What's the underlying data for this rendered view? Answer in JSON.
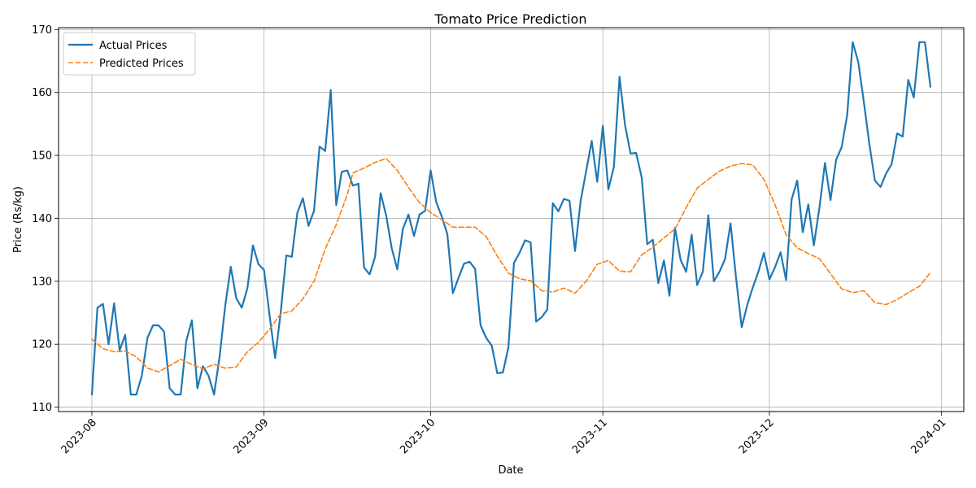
{
  "chart_data": {
    "type": "line",
    "title": "Tomato Price Prediction",
    "xlabel": "Date",
    "ylabel": "Price (Rs/kg)",
    "x_range": [
      "2023-07-26",
      "2024-01-05"
    ],
    "ylim": [
      109.3,
      170.3
    ],
    "x_ticks": [
      "2023-08-01",
      "2023-09-01",
      "2023-10-01",
      "2023-11-01",
      "2023-12-01",
      "2024-01-01"
    ],
    "x_tick_labels": [
      "2023-08",
      "2023-09",
      "2023-10",
      "2023-11",
      "2023-12",
      "2024-01"
    ],
    "y_ticks": [
      110,
      120,
      130,
      140,
      150,
      160,
      170
    ],
    "grid": true,
    "legend_position": "upper left",
    "series": [
      {
        "name": "Actual Prices",
        "color": "#1f77b4",
        "style": "solid",
        "points": [
          [
            "2023-08-01",
            112.0
          ],
          [
            "2023-08-02",
            125.8
          ],
          [
            "2023-08-03",
            126.4
          ],
          [
            "2023-08-04",
            120.0
          ],
          [
            "2023-08-05",
            126.5
          ],
          [
            "2023-08-06",
            119.0
          ],
          [
            "2023-08-07",
            121.5
          ],
          [
            "2023-08-08",
            112.0
          ],
          [
            "2023-08-09",
            112.0
          ],
          [
            "2023-08-10",
            115.0
          ],
          [
            "2023-08-11",
            121.0
          ],
          [
            "2023-08-12",
            123.0
          ],
          [
            "2023-08-13",
            123.0
          ],
          [
            "2023-08-14",
            122.0
          ],
          [
            "2023-08-15",
            113.0
          ],
          [
            "2023-08-16",
            112.0
          ],
          [
            "2023-08-17",
            112.0
          ],
          [
            "2023-08-18",
            120.5
          ],
          [
            "2023-08-19",
            123.8
          ],
          [
            "2023-08-20",
            113.0
          ],
          [
            "2023-08-21",
            116.5
          ],
          [
            "2023-08-22",
            115.0
          ],
          [
            "2023-08-23",
            112.0
          ],
          [
            "2023-08-24",
            118.0
          ],
          [
            "2023-08-25",
            126.0
          ],
          [
            "2023-08-26",
            132.3
          ],
          [
            "2023-08-27",
            127.3
          ],
          [
            "2023-08-28",
            125.8
          ],
          [
            "2023-08-29",
            128.9
          ],
          [
            "2023-08-30",
            135.7
          ],
          [
            "2023-08-31",
            132.7
          ],
          [
            "2023-09-01",
            131.8
          ],
          [
            "2023-09-02",
            124.5
          ],
          [
            "2023-09-03",
            117.8
          ],
          [
            "2023-09-04",
            125.0
          ],
          [
            "2023-09-05",
            134.1
          ],
          [
            "2023-09-06",
            133.9
          ],
          [
            "2023-09-07",
            140.9
          ],
          [
            "2023-09-08",
            143.2
          ],
          [
            "2023-09-09",
            138.8
          ],
          [
            "2023-09-10",
            141.2
          ],
          [
            "2023-09-11",
            151.4
          ],
          [
            "2023-09-12",
            150.7
          ],
          [
            "2023-09-13",
            160.4
          ],
          [
            "2023-09-14",
            142.1
          ],
          [
            "2023-09-15",
            147.4
          ],
          [
            "2023-09-16",
            147.6
          ],
          [
            "2023-09-17",
            145.2
          ],
          [
            "2023-09-18",
            145.5
          ],
          [
            "2023-09-19",
            132.2
          ],
          [
            "2023-09-20",
            131.1
          ],
          [
            "2023-09-21",
            133.9
          ],
          [
            "2023-09-22",
            144.0
          ],
          [
            "2023-09-23",
            140.4
          ],
          [
            "2023-09-24",
            135.2
          ],
          [
            "2023-09-25",
            131.9
          ],
          [
            "2023-09-26",
            138.3
          ],
          [
            "2023-09-27",
            140.6
          ],
          [
            "2023-09-28",
            137.2
          ],
          [
            "2023-09-29",
            140.6
          ],
          [
            "2023-09-30",
            141.2
          ],
          [
            "2023-10-01",
            147.6
          ],
          [
            "2023-10-02",
            142.6
          ],
          [
            "2023-10-03",
            140.3
          ],
          [
            "2023-10-04",
            137.5
          ],
          [
            "2023-10-05",
            128.1
          ],
          [
            "2023-10-06",
            130.5
          ],
          [
            "2023-10-07",
            132.8
          ],
          [
            "2023-10-08",
            133.1
          ],
          [
            "2023-10-09",
            132.0
          ],
          [
            "2023-10-10",
            123.0
          ],
          [
            "2023-10-11",
            121.0
          ],
          [
            "2023-10-12",
            119.8
          ],
          [
            "2023-10-13",
            115.4
          ],
          [
            "2023-10-14",
            115.5
          ],
          [
            "2023-10-15",
            119.5
          ],
          [
            "2023-10-16",
            132.9
          ],
          [
            "2023-10-17",
            134.5
          ],
          [
            "2023-10-18",
            136.5
          ],
          [
            "2023-10-19",
            136.2
          ],
          [
            "2023-10-20",
            123.6
          ],
          [
            "2023-10-21",
            124.3
          ],
          [
            "2023-10-22",
            125.5
          ],
          [
            "2023-10-23",
            142.4
          ],
          [
            "2023-10-24",
            141.1
          ],
          [
            "2023-10-25",
            143.1
          ],
          [
            "2023-10-26",
            142.8
          ],
          [
            "2023-10-27",
            134.8
          ],
          [
            "2023-10-28",
            142.8
          ],
          [
            "2023-10-29",
            147.5
          ],
          [
            "2023-10-30",
            152.3
          ],
          [
            "2023-10-31",
            145.8
          ],
          [
            "2023-11-01",
            154.7
          ],
          [
            "2023-11-02",
            144.6
          ],
          [
            "2023-11-03",
            148.2
          ],
          [
            "2023-11-04",
            162.5
          ],
          [
            "2023-11-05",
            154.8
          ],
          [
            "2023-11-06",
            150.3
          ],
          [
            "2023-11-07",
            150.4
          ],
          [
            "2023-11-08",
            146.5
          ],
          [
            "2023-11-09",
            135.9
          ],
          [
            "2023-11-10",
            136.6
          ],
          [
            "2023-11-11",
            129.7
          ],
          [
            "2023-11-12",
            133.3
          ],
          [
            "2023-11-13",
            127.7
          ],
          [
            "2023-11-14",
            138.5
          ],
          [
            "2023-11-15",
            133.4
          ],
          [
            "2023-11-16",
            131.5
          ],
          [
            "2023-11-17",
            137.4
          ],
          [
            "2023-11-18",
            129.4
          ],
          [
            "2023-11-19",
            131.5
          ],
          [
            "2023-11-20",
            140.5
          ],
          [
            "2023-11-21",
            130.0
          ],
          [
            "2023-11-22",
            131.5
          ],
          [
            "2023-11-23",
            133.5
          ],
          [
            "2023-11-24",
            139.2
          ],
          [
            "2023-11-25",
            130.5
          ],
          [
            "2023-11-26",
            122.7
          ],
          [
            "2023-11-27",
            126.2
          ],
          [
            "2023-11-28",
            129.0
          ],
          [
            "2023-11-29",
            131.5
          ],
          [
            "2023-11-30",
            134.5
          ],
          [
            "2023-12-01",
            130.3
          ],
          [
            "2023-12-02",
            132.2
          ],
          [
            "2023-12-03",
            134.6
          ],
          [
            "2023-12-04",
            130.2
          ],
          [
            "2023-12-05",
            143.0
          ],
          [
            "2023-12-06",
            146.0
          ],
          [
            "2023-12-07",
            137.8
          ],
          [
            "2023-12-08",
            142.2
          ],
          [
            "2023-12-09",
            135.7
          ],
          [
            "2023-12-10",
            141.7
          ],
          [
            "2023-12-11",
            148.8
          ],
          [
            "2023-12-12",
            142.9
          ],
          [
            "2023-12-13",
            149.3
          ],
          [
            "2023-12-14",
            151.3
          ],
          [
            "2023-12-15",
            156.4
          ],
          [
            "2023-12-16",
            168.0
          ],
          [
            "2023-12-17",
            164.8
          ],
          [
            "2023-12-18",
            158.5
          ],
          [
            "2023-12-19",
            151.8
          ],
          [
            "2023-12-20",
            146.0
          ],
          [
            "2023-12-21",
            145.0
          ],
          [
            "2023-12-22",
            147.1
          ],
          [
            "2023-12-23",
            148.6
          ],
          [
            "2023-12-24",
            153.5
          ],
          [
            "2023-12-25",
            153.0
          ],
          [
            "2023-12-26",
            162.0
          ],
          [
            "2023-12-27",
            159.2
          ],
          [
            "2023-12-28",
            168.0
          ],
          [
            "2023-12-29",
            168.0
          ],
          [
            "2023-12-30",
            160.9
          ]
        ]
      },
      {
        "name": "Predicted Prices",
        "color": "#ff7f0e",
        "style": "dashed",
        "points": [
          [
            "2023-08-01",
            120.8
          ],
          [
            "2023-08-03",
            119.3
          ],
          [
            "2023-08-05",
            118.8
          ],
          [
            "2023-08-07",
            118.9
          ],
          [
            "2023-08-09",
            118.0
          ],
          [
            "2023-08-11",
            116.2
          ],
          [
            "2023-08-13",
            115.6
          ],
          [
            "2023-08-15",
            116.6
          ],
          [
            "2023-08-17",
            117.6
          ],
          [
            "2023-08-19",
            116.8
          ],
          [
            "2023-08-21",
            116.1
          ],
          [
            "2023-08-23",
            116.8
          ],
          [
            "2023-08-25",
            116.2
          ],
          [
            "2023-08-27",
            116.4
          ],
          [
            "2023-08-29",
            118.8
          ],
          [
            "2023-08-31",
            120.3
          ],
          [
            "2023-09-02",
            122.4
          ],
          [
            "2023-09-04",
            124.8
          ],
          [
            "2023-09-06",
            125.3
          ],
          [
            "2023-09-08",
            127.2
          ],
          [
            "2023-09-10",
            130.0
          ],
          [
            "2023-09-12",
            135.1
          ],
          [
            "2023-09-14",
            139.0
          ],
          [
            "2023-09-16",
            143.8
          ],
          [
            "2023-09-17",
            147.2
          ],
          [
            "2023-09-19",
            148.0
          ],
          [
            "2023-09-21",
            148.9
          ],
          [
            "2023-09-23",
            149.5
          ],
          [
            "2023-09-25",
            147.6
          ],
          [
            "2023-09-27",
            144.9
          ],
          [
            "2023-09-29",
            142.5
          ],
          [
            "2023-10-01",
            140.9
          ],
          [
            "2023-10-03",
            139.8
          ],
          [
            "2023-10-05",
            138.6
          ],
          [
            "2023-10-07",
            138.6
          ],
          [
            "2023-10-09",
            138.6
          ],
          [
            "2023-10-11",
            137.1
          ],
          [
            "2023-10-13",
            134.0
          ],
          [
            "2023-10-15",
            131.3
          ],
          [
            "2023-10-17",
            130.4
          ],
          [
            "2023-10-19",
            130.1
          ],
          [
            "2023-10-21",
            128.5
          ],
          [
            "2023-10-23",
            128.3
          ],
          [
            "2023-10-25",
            128.9
          ],
          [
            "2023-10-27",
            128.1
          ],
          [
            "2023-10-29",
            130.0
          ],
          [
            "2023-10-31",
            132.7
          ],
          [
            "2023-11-02",
            133.3
          ],
          [
            "2023-11-04",
            131.6
          ],
          [
            "2023-11-06",
            131.5
          ],
          [
            "2023-11-08",
            134.2
          ],
          [
            "2023-11-10",
            135.4
          ],
          [
            "2023-11-12",
            136.9
          ],
          [
            "2023-11-14",
            138.3
          ],
          [
            "2023-11-16",
            141.7
          ],
          [
            "2023-11-18",
            144.8
          ],
          [
            "2023-11-20",
            146.2
          ],
          [
            "2023-11-22",
            147.5
          ],
          [
            "2023-11-24",
            148.3
          ],
          [
            "2023-11-26",
            148.7
          ],
          [
            "2023-11-28",
            148.5
          ],
          [
            "2023-11-30",
            146.2
          ],
          [
            "2023-12-02",
            142.2
          ],
          [
            "2023-12-04",
            137.4
          ],
          [
            "2023-12-06",
            135.3
          ],
          [
            "2023-12-08",
            134.4
          ],
          [
            "2023-12-10",
            133.6
          ],
          [
            "2023-12-12",
            131.2
          ],
          [
            "2023-12-14",
            128.8
          ],
          [
            "2023-12-16",
            128.2
          ],
          [
            "2023-12-18",
            128.5
          ],
          [
            "2023-12-20",
            126.6
          ],
          [
            "2023-12-22",
            126.3
          ],
          [
            "2023-12-24",
            127.1
          ],
          [
            "2023-12-26",
            128.2
          ],
          [
            "2023-12-28",
            129.2
          ],
          [
            "2023-12-30",
            131.4
          ]
        ]
      }
    ]
  }
}
